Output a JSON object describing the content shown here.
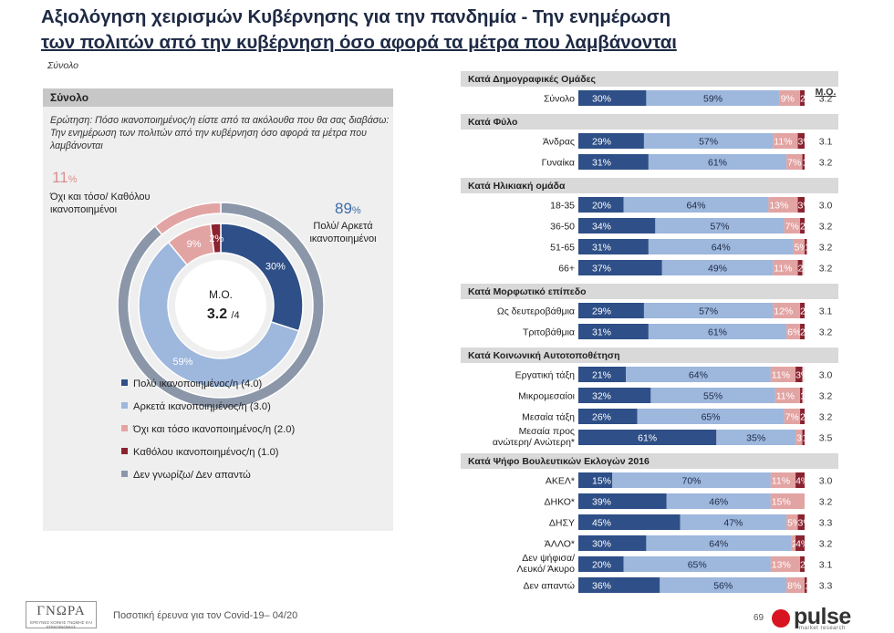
{
  "title": {
    "line1": "Αξιολόγηση χειρισμών Κυβέρνησης για την πανδημία - Την ενημέρωση",
    "line2": "των πολιτών από την κυβέρνηση όσο αφορά τα μέτρα που λαμβάνονται"
  },
  "subtitle": "Σύνολο",
  "left_panel": {
    "header": "Σύνολο",
    "question": "Ερώτηση: Πόσο ικανοποιημένος/η είστε από τα ακόλουθα που θα σας διαβάσω: Την ενημέρωση των πολιτών από την κυβέρνηση όσο αφορά τα μέτρα που λαμβάνονται",
    "neg_value": "11",
    "neg_unit": "%",
    "neg_label_1": "Όχι και τόσο/ Καθόλου",
    "neg_label_2": "ικανοποιημένοι",
    "pos_value": "89",
    "pos_unit": "%",
    "pos_label_1": "Πολύ/ Αρκετά",
    "pos_label_2": "ικανοποιημένοι",
    "mean_label": "Μ.Ο.",
    "mean_value": "3.2",
    "mean_scale": "/4",
    "legend": [
      {
        "label": "Πολύ ικανοποιημένος/η (4.0)",
        "color": "#2e4f87"
      },
      {
        "label": "Αρκετά ικανοποιημένος/η (3.0)",
        "color": "#9db7dd"
      },
      {
        "label": "Όχι και τόσο ικανοποιημένος/η (2.0)",
        "color": "#e2a4a3"
      },
      {
        "label": "Καθόλου ικανοποιημένος/η (1.0)",
        "color": "#8a2230"
      },
      {
        "label": "Δεν γνωρίζω/ Δεν απαντώ",
        "color": "#8b97a9"
      }
    ]
  },
  "colors": {
    "very": "#2e4f87",
    "fairly": "#9db7dd",
    "notvery": "#e2a4a3",
    "notatall": "#8a2230",
    "dk": "#8b97a9",
    "section_bg": "#d9d9d9",
    "row_bg": "#e8e8e8"
  },
  "chart_data": [
    {
      "type": "pie",
      "title": "Σύνολο",
      "categories": [
        "Πολύ ικανοποιημένος/η (4.0)",
        "Αρκετά ικανοποιημένος/η (3.0)",
        "Όχι και τόσο ικανοποιημένος/η (2.0)",
        "Καθόλου ικανοποιημένος/η (1.0)"
      ],
      "values": [
        30,
        59,
        9,
        2
      ],
      "outer_ring": [
        {
          "name": "Πολύ/ Αρκετά ικανοποιημένοι",
          "value": 89
        },
        {
          "name": "Όχι και τόσο/ Καθόλου ικανοποιημένοι",
          "value": 11
        }
      ],
      "mean": 3.2
    },
    {
      "type": "bar",
      "stacked": true,
      "orientation": "horizontal",
      "series_names": [
        "Πολύ ικανοποιημένος/η (4.0)",
        "Αρκετά ικανοποιημένος/η (3.0)",
        "Όχι και τόσο ικανοποιημένος/η (2.0)",
        "Καθόλου ικανοποιημένος/η (1.0)"
      ],
      "mean_header": "Μ.Ο.",
      "sections": [
        {
          "title": "Κατά Δημογραφικές Ομάδες",
          "rows": [
            {
              "label": [
                "Σύνολο"
              ],
              "values": [
                30,
                59,
                9,
                2
              ],
              "labels": [
                "30%",
                "59%",
                "9%",
                "2%"
              ],
              "mean": "3.2"
            }
          ]
        },
        {
          "title": "Κατά Φύλο",
          "rows": [
            {
              "label": [
                "Άνδρας"
              ],
              "values": [
                29,
                57,
                11,
                3
              ],
              "labels": [
                "29%",
                "57%",
                "11%",
                "3%"
              ],
              "mean": "3.1"
            },
            {
              "label": [
                "Γυναίκα"
              ],
              "values": [
                31,
                61,
                7,
                1
              ],
              "labels": [
                "31%",
                "61%",
                "7%",
                "1%"
              ],
              "mean": "3.2"
            }
          ]
        },
        {
          "title": "Κατά Ηλικιακή ομάδα",
          "rows": [
            {
              "label": [
                "18-35"
              ],
              "values": [
                20,
                64,
                13,
                3
              ],
              "labels": [
                "20%",
                "64%",
                "13%",
                "3%"
              ],
              "mean": "3.0"
            },
            {
              "label": [
                "36-50"
              ],
              "values": [
                34,
                57,
                7,
                2
              ],
              "labels": [
                "34%",
                "57%",
                "7%",
                "2%"
              ],
              "mean": "3.2"
            },
            {
              "label": [
                "51-65"
              ],
              "values": [
                31,
                64,
                5,
                1
              ],
              "labels": [
                "31%",
                "64%",
                "5%",
                "1%"
              ],
              "mean": "3.2"
            },
            {
              "label": [
                "66+"
              ],
              "values": [
                37,
                49,
                11,
                2
              ],
              "labels": [
                "37%",
                "49%",
                "11%",
                "2%"
              ],
              "mean": "3.2"
            }
          ]
        },
        {
          "title": "Κατά Μορφωτικό επίπεδο",
          "rows": [
            {
              "label": [
                "Ως δευτεροβάθμια"
              ],
              "values": [
                29,
                57,
                12,
                2
              ],
              "labels": [
                "29%",
                "57%",
                "12%",
                "2%"
              ],
              "mean": "3.1"
            },
            {
              "label": [
                "Τριτοβάθμια"
              ],
              "values": [
                31,
                61,
                6,
                2
              ],
              "labels": [
                "31%",
                "61%",
                "6%",
                "2%"
              ],
              "mean": "3.2"
            }
          ]
        },
        {
          "title": "Κατά Κοινωνική Αυτοτοποθέτηση",
          "rows": [
            {
              "label": [
                "Εργατική τάξη"
              ],
              "values": [
                21,
                64,
                11,
                3
              ],
              "labels": [
                "21%",
                "64%",
                "11%",
                "3%"
              ],
              "mean": "3.0"
            },
            {
              "label": [
                "Μικρομεσαίοι"
              ],
              "values": [
                32,
                55,
                11,
                1
              ],
              "labels": [
                "32%",
                "55%",
                "11%",
                "1%"
              ],
              "mean": "3.2"
            },
            {
              "label": [
                "Μεσαία τάξη"
              ],
              "values": [
                26,
                65,
                7,
                2
              ],
              "labels": [
                "26%",
                "65%",
                "7%",
                "2%"
              ],
              "mean": "3.2"
            },
            {
              "label": [
                "Μεσαία προς",
                "ανώτερη/ Ανώτερη*"
              ],
              "values": [
                61,
                35,
                3,
                1
              ],
              "labels": [
                "61%",
                "35%",
                "3%",
                "1%"
              ],
              "mean": "3.5"
            }
          ]
        },
        {
          "title": "Κατά Ψήφο Βουλευτικών Εκλογών 2016",
          "rows": [
            {
              "label": [
                "ΑΚΕΛ*"
              ],
              "values": [
                15,
                70,
                11,
                4
              ],
              "labels": [
                "15%",
                "70%",
                "11%",
                "4%"
              ],
              "mean": "3.0"
            },
            {
              "label": [
                "ΔΗΚΟ*"
              ],
              "values": [
                39,
                46,
                15,
                0
              ],
              "labels": [
                "39%",
                "46%",
                "15%",
                "0%"
              ],
              "mean": "3.2"
            },
            {
              "label": [
                "ΔΗΣΥ"
              ],
              "values": [
                45,
                47,
                5,
                3
              ],
              "labels": [
                "45%",
                "47%",
                "5%",
                "3%"
              ],
              "mean": "3.3"
            },
            {
              "label": [
                "ΆΛΛΟ*"
              ],
              "values": [
                30,
                64,
                2,
                4
              ],
              "labels": [
                "30%",
                "64%",
                "2%",
                "4%"
              ],
              "mean": "3.2"
            },
            {
              "label": [
                "Δεν ψήφισα/",
                "Λευκό/ Άκυρο"
              ],
              "values": [
                20,
                65,
                13,
                2
              ],
              "labels": [
                "20%",
                "65%",
                "13%",
                "2%"
              ],
              "mean": "3.1"
            },
            {
              "label": [
                "Δεν απαντώ"
              ],
              "values": [
                36,
                56,
                8,
                1
              ],
              "labels": [
                "36%",
                "56%",
                "8%",
                "1%"
              ],
              "mean": "3.3"
            }
          ]
        }
      ]
    }
  ],
  "footer": {
    "logo_main": "ΓΝΩΡΑ",
    "logo_sub": "ΕΡΕΥΝΕΣ ΚΟΙΝΗΣ ΓΝΩΜΗΣ ΚΑΙ ΕΠΙΚΟΙΝΩΝΙΑΣ",
    "text": "Ποσοτική έρευνα για τον Covid-19– 04/20",
    "page": "69",
    "brand": "pulse",
    "brand_sub": "market research"
  }
}
